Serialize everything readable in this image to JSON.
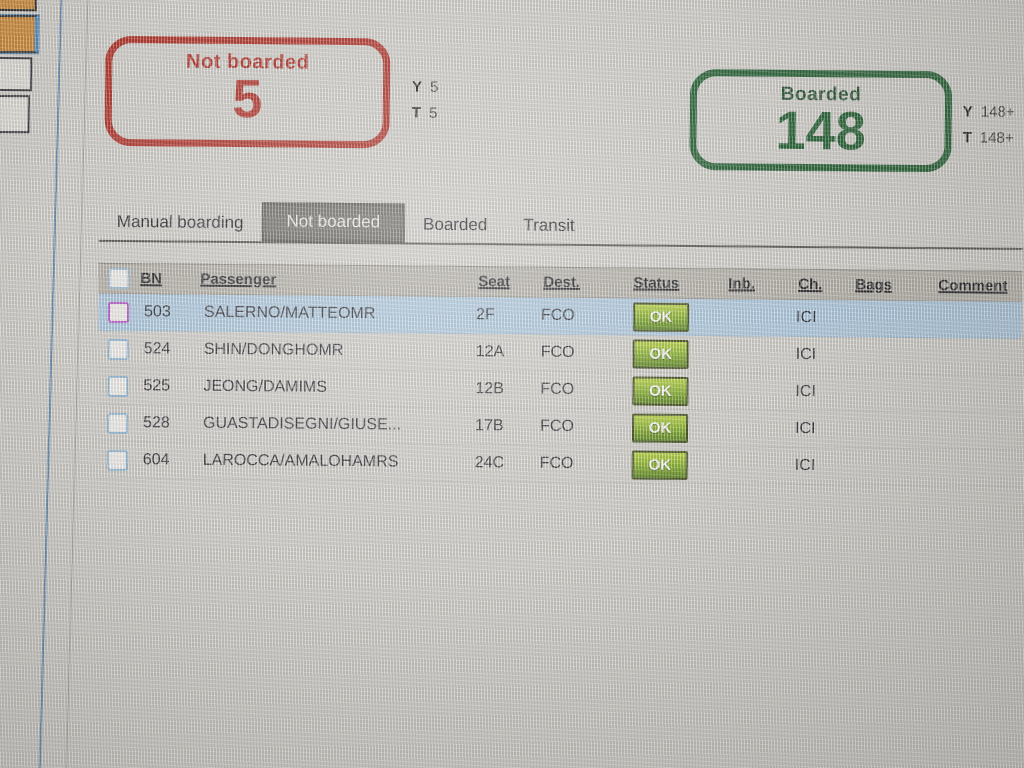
{
  "counters": {
    "not_boarded": {
      "title": "Not boarded",
      "count": "5",
      "stats": [
        {
          "label": "Y",
          "value": "5"
        },
        {
          "label": "T",
          "value": "5"
        }
      ],
      "color": "#b02a20"
    },
    "boarded": {
      "title": "Boarded",
      "count": "148",
      "stats": [
        {
          "label": "Y",
          "value": "148+"
        },
        {
          "label": "T",
          "value": "148+"
        }
      ],
      "color": "#1d5c2e"
    }
  },
  "tabs": [
    {
      "label": "Manual boarding",
      "selected": false
    },
    {
      "label": "Not boarded",
      "selected": true
    },
    {
      "label": "Boarded",
      "selected": false
    },
    {
      "label": "Transit",
      "selected": false
    }
  ],
  "table": {
    "columns": [
      "BN",
      "Passenger",
      "Seat",
      "Dest.",
      "Status",
      "Inb.",
      "Ch.",
      "Bags",
      "Comment"
    ],
    "rows": [
      {
        "bn": "503",
        "passenger": "SALERNO/MATTEOMR",
        "seat": "2F",
        "dest": "FCO",
        "status": "OK",
        "inb": "",
        "ch": "ICI",
        "bags": "",
        "comment": "",
        "selected": true
      },
      {
        "bn": "524",
        "passenger": "SHIN/DONGHOMR",
        "seat": "12A",
        "dest": "FCO",
        "status": "OK",
        "inb": "",
        "ch": "ICI",
        "bags": "",
        "comment": "",
        "selected": false
      },
      {
        "bn": "525",
        "passenger": "JEONG/DAMIMS",
        "seat": "12B",
        "dest": "FCO",
        "status": "OK",
        "inb": "",
        "ch": "ICI",
        "bags": "",
        "comment": "",
        "selected": false
      },
      {
        "bn": "528",
        "passenger": "GUASTADISEGNI/GIUSE...",
        "seat": "17B",
        "dest": "FCO",
        "status": "OK",
        "inb": "",
        "ch": "ICI",
        "bags": "",
        "comment": "",
        "selected": false
      },
      {
        "bn": "604",
        "passenger": "LAROCCA/AMALOHAMRS",
        "seat": "24C",
        "dest": "FCO",
        "status": "OK",
        "inb": "",
        "ch": "ICI",
        "bags": "",
        "comment": "",
        "selected": false
      }
    ]
  },
  "colors": {
    "not_boarded_red": "#b02a20",
    "boarded_green": "#1d5c2e",
    "selected_row_blue": "#aecbe3",
    "ok_button_green": "#8ab526",
    "selected_tab_gray": "#6f6c68",
    "seat_occupied_orange": "#d0862c"
  }
}
